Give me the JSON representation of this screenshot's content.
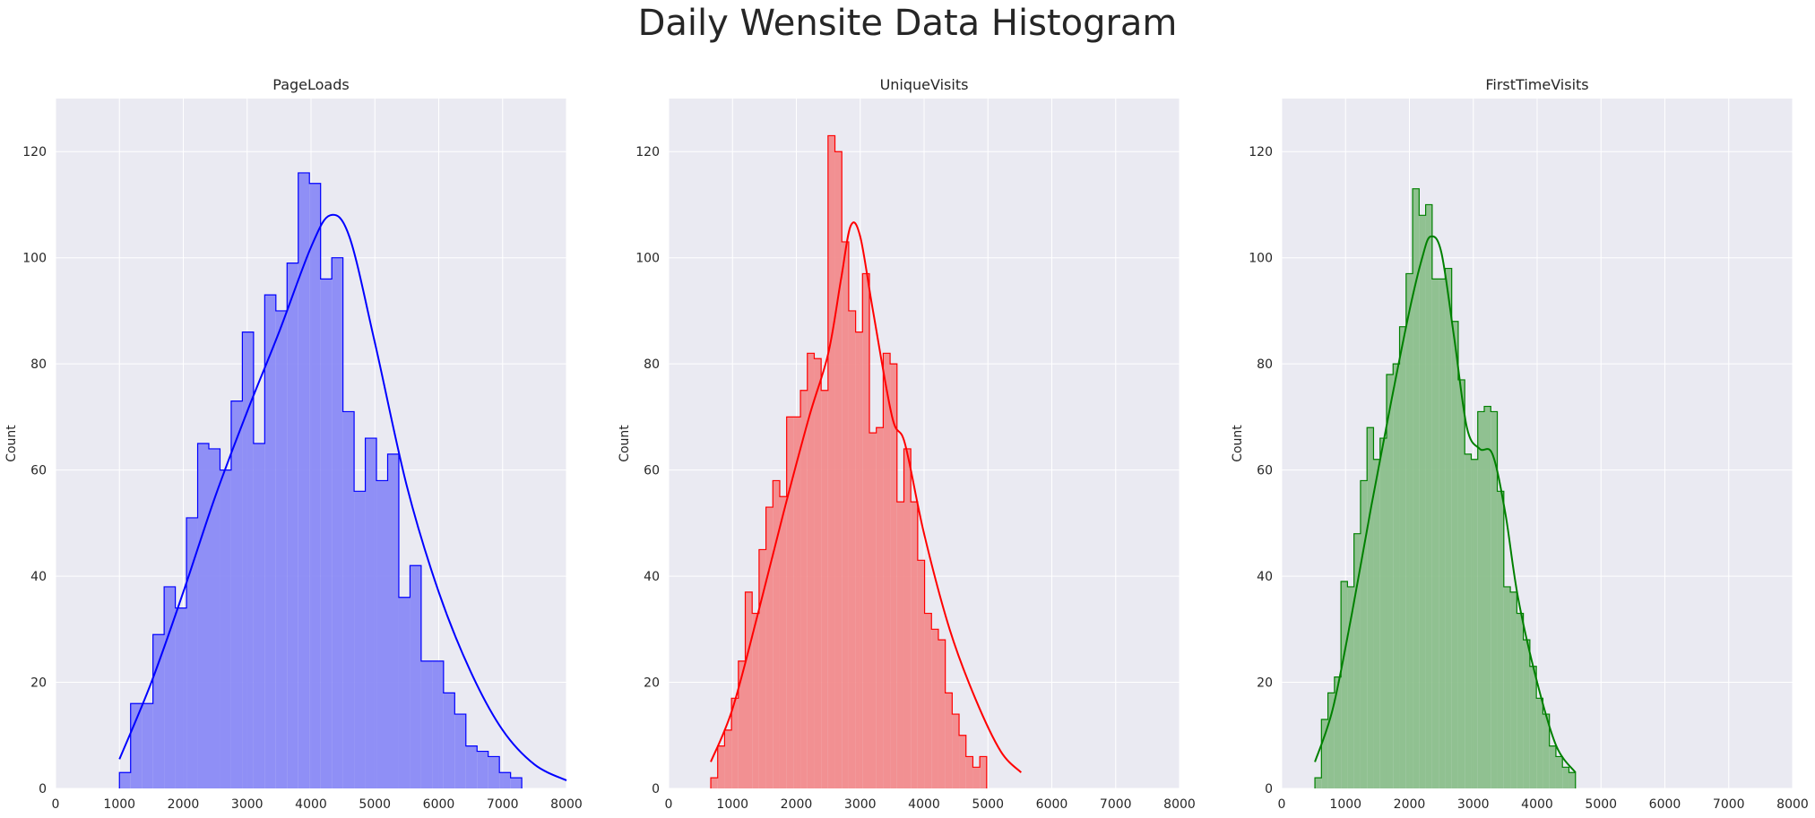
{
  "figure_title": "Daily Wensite Data Histogram",
  "colors": {
    "panel_bg": "#eaeaf2",
    "grid": "#ffffff"
  },
  "chart_data": [
    {
      "type": "histogram",
      "title": "PageLoads",
      "ylabel": "Count",
      "xlabel": "",
      "color": "#0000ff",
      "fill": "#8a8af5",
      "xlim": [
        0,
        8000
      ],
      "ylim": [
        0,
        130
      ],
      "xticks": [
        0,
        1000,
        2000,
        3000,
        4000,
        5000,
        6000,
        7000,
        8000
      ],
      "yticks": [
        0,
        20,
        40,
        60,
        80,
        100,
        120
      ],
      "bin_start": 1000,
      "bin_width": 175,
      "counts": [
        3,
        16,
        16,
        29,
        38,
        34,
        51,
        65,
        64,
        60,
        73,
        86,
        65,
        93,
        90,
        99,
        116,
        114,
        96,
        100,
        71,
        56,
        66,
        58,
        63,
        36,
        42,
        24,
        24,
        18,
        14,
        8,
        7,
        6,
        3,
        2
      ],
      "kde": {
        "x": [
          1000,
          1500,
          2000,
          2500,
          3000,
          3500,
          4000,
          4300,
          4600,
          5000,
          5500,
          6000,
          6500,
          7000,
          7500,
          8000
        ],
        "y": [
          5.5,
          20,
          37,
          55,
          71,
          86,
          102,
          108,
          104,
          84,
          57,
          37,
          22,
          11,
          4.5,
          1.5
        ]
      }
    },
    {
      "type": "histogram",
      "title": "UniqueVisits",
      "ylabel": "Count",
      "xlabel": "",
      "color": "#ff0000",
      "fill": "#f28b8c",
      "xlim": [
        0,
        8000
      ],
      "ylim": [
        0,
        130
      ],
      "xticks": [
        0,
        1000,
        2000,
        3000,
        4000,
        5000,
        6000,
        7000,
        8000
      ],
      "yticks": [
        0,
        20,
        40,
        60,
        80,
        100,
        120
      ],
      "bin_start": 660,
      "bin_width": 108,
      "counts": [
        2,
        8,
        11,
        17,
        24,
        37,
        33,
        45,
        53,
        58,
        55,
        70,
        70,
        75,
        82,
        81,
        75,
        123,
        120,
        103,
        90,
        86,
        97,
        67,
        68,
        82,
        80,
        54,
        64,
        54,
        43,
        33,
        30,
        28,
        18,
        14,
        10,
        6,
        4,
        6
      ],
      "kde": {
        "x": [
          660,
          1000,
          1400,
          1800,
          2200,
          2500,
          2700,
          2850,
          3000,
          3200,
          3500,
          3700,
          4000,
          4400,
          4800,
          5200,
          5520
        ],
        "y": [
          5,
          15,
          33,
          52,
          70,
          82,
          96,
          106,
          104,
          90,
          70,
          65,
          48,
          30,
          17,
          7,
          3
        ]
      }
    },
    {
      "type": "histogram",
      "title": "FirstTimeVisits",
      "ylabel": "Count",
      "xlabel": "",
      "color": "#008000",
      "fill": "#8bbf8b",
      "xlim": [
        0,
        8000
      ],
      "ylim": [
        0,
        130
      ],
      "xticks": [
        0,
        1000,
        2000,
        3000,
        4000,
        5000,
        6000,
        7000,
        8000
      ],
      "yticks": [
        0,
        20,
        40,
        60,
        80,
        100,
        120
      ],
      "bin_start": 520,
      "bin_width": 102,
      "counts": [
        2,
        13,
        18,
        21,
        39,
        38,
        48,
        58,
        68,
        62,
        66,
        78,
        80,
        87,
        97,
        113,
        108,
        110,
        96,
        96,
        98,
        88,
        77,
        63,
        62,
        71,
        72,
        71,
        56,
        38,
        37,
        33,
        28,
        23,
        17,
        14,
        8,
        6,
        4,
        3
      ],
      "kde": {
        "x": [
          520,
          800,
          1100,
          1400,
          1700,
          2000,
          2200,
          2330,
          2500,
          2700,
          2900,
          3100,
          3300,
          3500,
          3700,
          4000,
          4300,
          4600
        ],
        "y": [
          5,
          15,
          33,
          53,
          72,
          90,
          100,
          104,
          101,
          85,
          68,
          64,
          63,
          52,
          36,
          20,
          8,
          3
        ]
      }
    }
  ]
}
